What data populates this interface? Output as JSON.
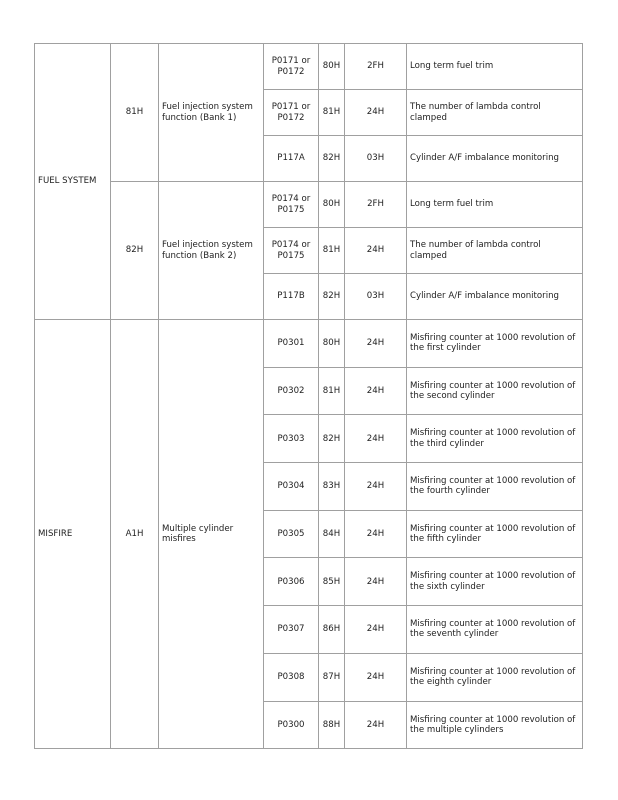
{
  "groups": [
    {
      "system": "FUEL SYSTEM",
      "subgroups": [
        {
          "id": "81H",
          "function": "Fuel injection system function (Bank 1)",
          "rows": [
            {
              "dtc": "P0171 or P0172",
              "a": "80H",
              "b": "2FH",
              "desc": "Long term fuel trim"
            },
            {
              "dtc": "P0171 or P0172",
              "a": "81H",
              "b": "24H",
              "desc": "The number of lambda control clamped"
            },
            {
              "dtc": "P117A",
              "a": "82H",
              "b": "03H",
              "desc": "Cylinder A/F imbalance monitoring"
            }
          ]
        },
        {
          "id": "82H",
          "function": "Fuel injection system function (Bank 2)",
          "rows": [
            {
              "dtc": "P0174 or P0175",
              "a": "80H",
              "b": "2FH",
              "desc": "Long term fuel trim"
            },
            {
              "dtc": "P0174 or P0175",
              "a": "81H",
              "b": "24H",
              "desc": "The number of lambda control clamped"
            },
            {
              "dtc": "P117B",
              "a": "82H",
              "b": "03H",
              "desc": "Cylinder A/F imbalance monitoring"
            }
          ]
        }
      ]
    },
    {
      "system": "MISFIRE",
      "subgroups": [
        {
          "id": "A1H",
          "function": "Multiple cylinder misfires",
          "rows": [
            {
              "dtc": "P0301",
              "a": "80H",
              "b": "24H",
              "desc": "Misfiring counter at 1000 revolution of the first cylinder"
            },
            {
              "dtc": "P0302",
              "a": "81H",
              "b": "24H",
              "desc": "Misfiring counter at 1000 revolution of the second cylinder"
            },
            {
              "dtc": "P0303",
              "a": "82H",
              "b": "24H",
              "desc": "Misfiring counter at 1000 revolution of the third cylinder"
            },
            {
              "dtc": "P0304",
              "a": "83H",
              "b": "24H",
              "desc": "Misfiring counter at 1000 revolution of the fourth cylinder"
            },
            {
              "dtc": "P0305",
              "a": "84H",
              "b": "24H",
              "desc": "Misfiring counter at 1000 revolution of the fifth cylinder"
            },
            {
              "dtc": "P0306",
              "a": "85H",
              "b": "24H",
              "desc": "Misfiring counter at 1000 revolution of the sixth cylinder"
            },
            {
              "dtc": "P0307",
              "a": "86H",
              "b": "24H",
              "desc": "Misfiring counter at 1000 revolution of the seventh cylinder"
            },
            {
              "dtc": "P0308",
              "a": "87H",
              "b": "24H",
              "desc": "Misfiring counter at 1000 revolution of the eighth cylinder"
            },
            {
              "dtc": "P0300",
              "a": "88H",
              "b": "24H",
              "desc": "Misfiring counter at 1000 revolution of the multiple cylinders"
            }
          ]
        }
      ]
    }
  ]
}
